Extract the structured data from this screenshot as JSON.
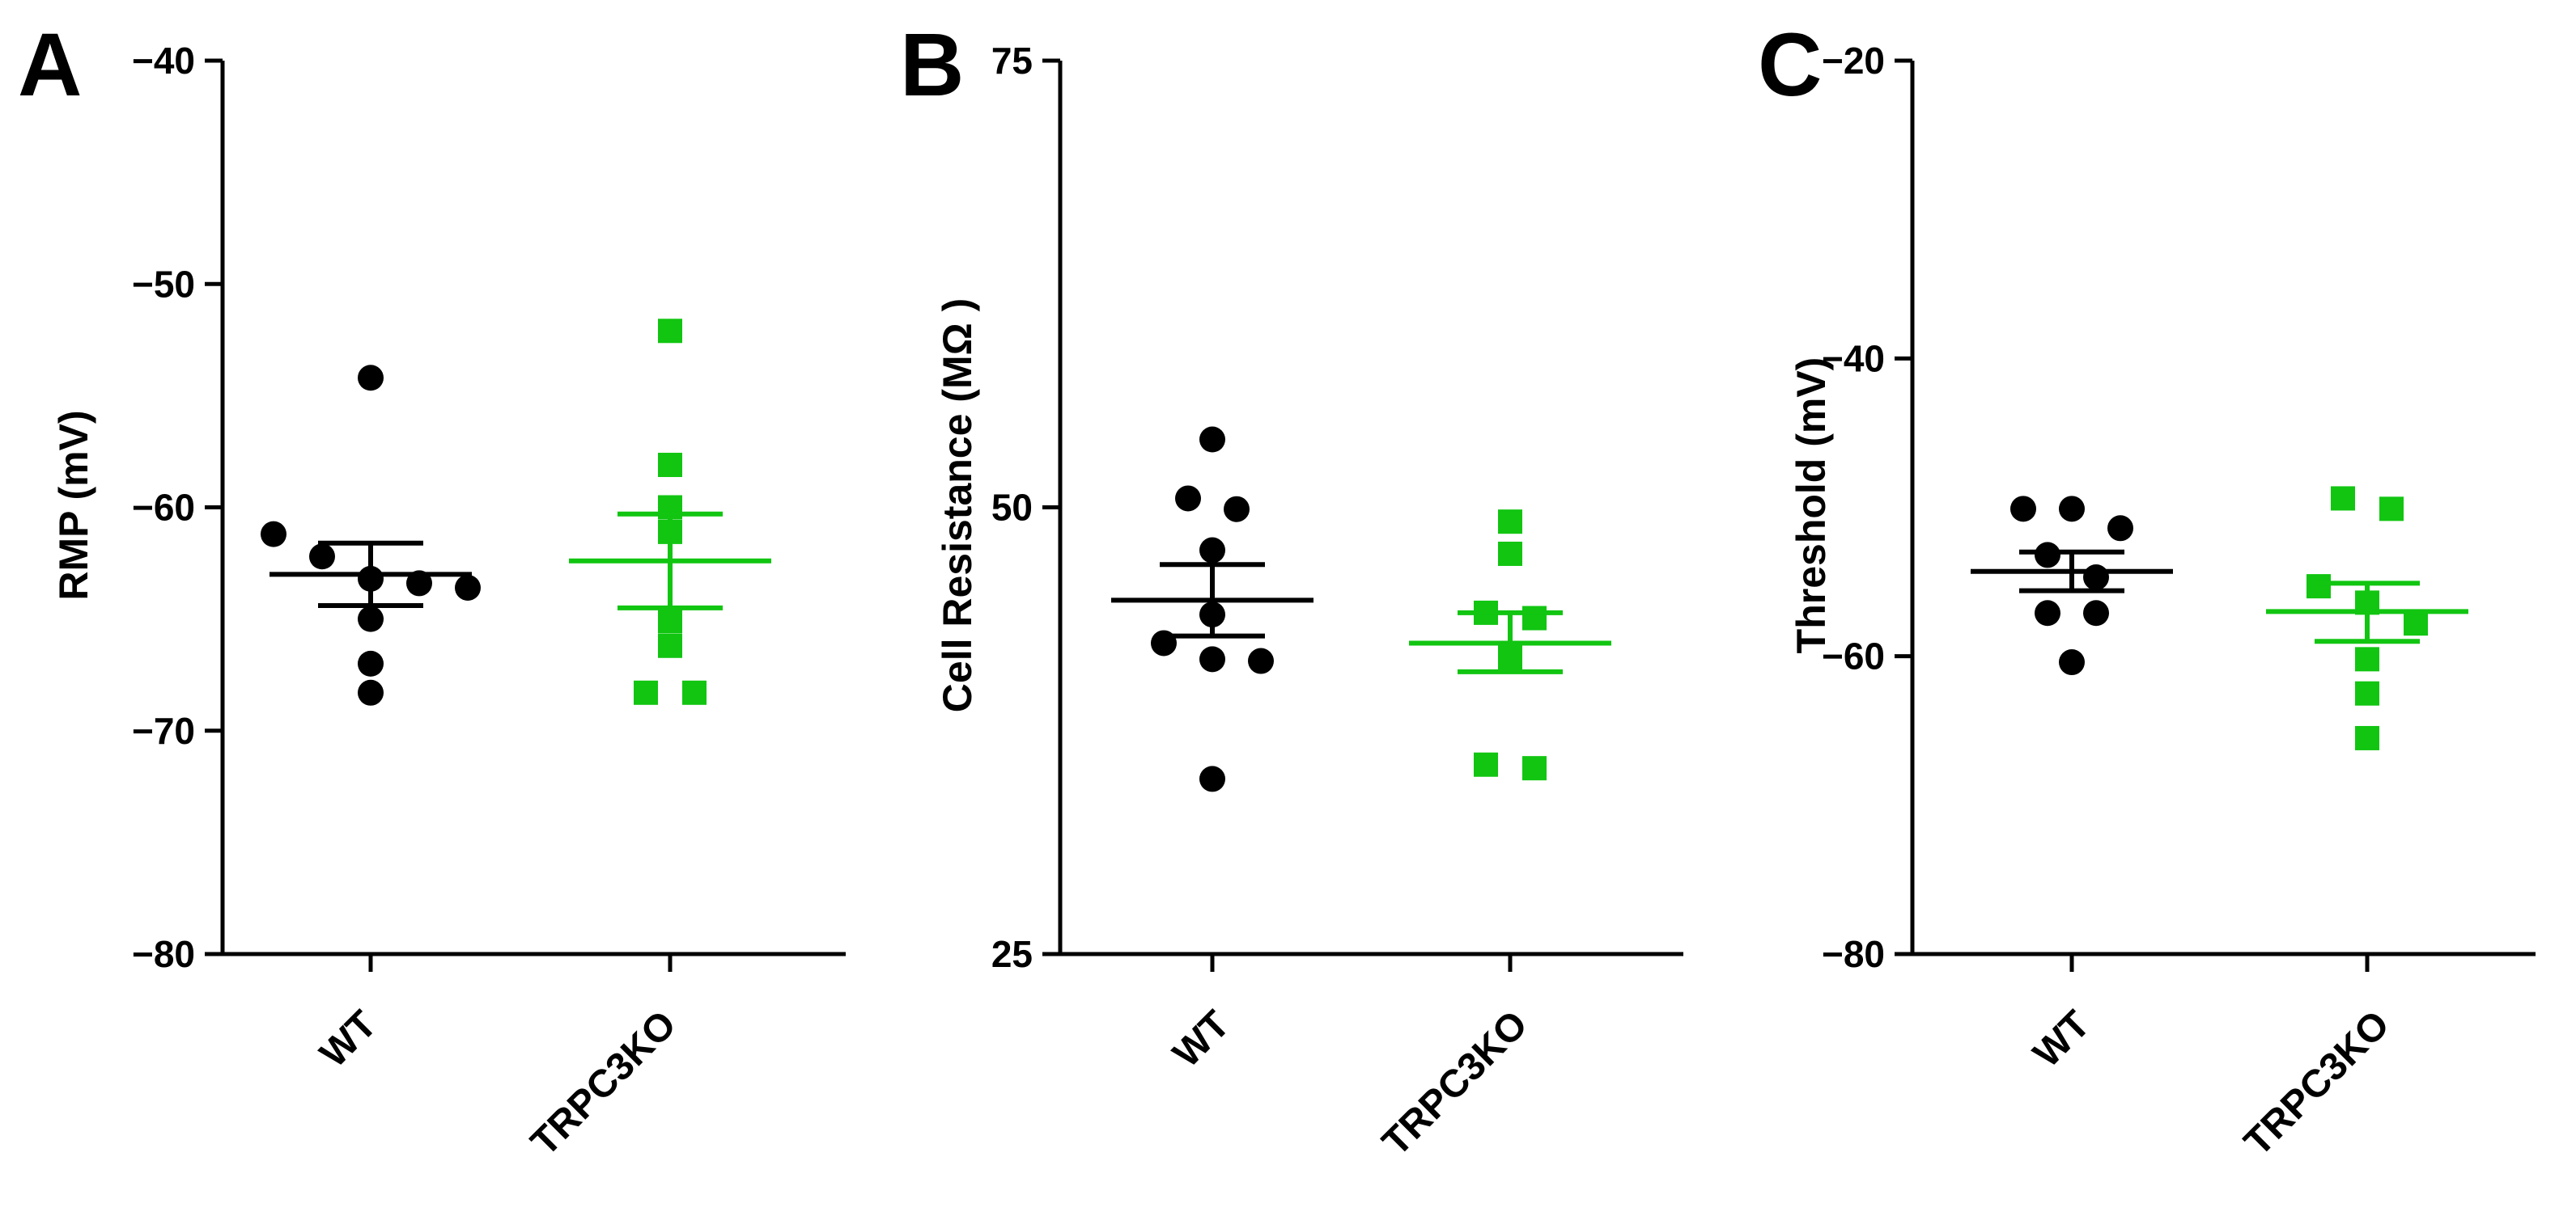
{
  "colors": {
    "wt": "#000000",
    "ko": "#11c511",
    "axis": "#000000"
  },
  "chart_data": [
    {
      "type": "scatter",
      "panel": "A",
      "ylabel": "RMP (mV)",
      "ylim": [
        -80,
        -40
      ],
      "yticks": [
        -40,
        -50,
        -60,
        -70,
        -80
      ],
      "ytick_labels": [
        "−40",
        "−50",
        "−60",
        "−70",
        "−80"
      ],
      "categories": [
        "WT",
        "TRPC3KO"
      ],
      "series": [
        {
          "name": "WT",
          "marker": "circle",
          "values": [
            -54.2,
            -61.2,
            -62.2,
            -63.2,
            -63.4,
            -63.6,
            -65.0,
            -67.0,
            -68.3
          ],
          "mean": -63.0,
          "sem_low": -64.4,
          "sem_high": -61.6
        },
        {
          "name": "TRPC3KO",
          "marker": "square",
          "values": [
            -52.1,
            -58.1,
            -60.0,
            -61.1,
            -65.1,
            -66.2,
            -68.3,
            -68.3
          ],
          "mean": -62.4,
          "sem_low": -64.5,
          "sem_high": -60.3
        }
      ]
    },
    {
      "type": "scatter",
      "panel": "B",
      "ylabel": "Cell Resistance (MΩ )",
      "ylim": [
        25,
        75
      ],
      "yticks": [
        25,
        50,
        75
      ],
      "ytick_labels": [
        "25",
        "50",
        "75"
      ],
      "categories": [
        "WT",
        "TRPC3KO"
      ],
      "series": [
        {
          "name": "WT",
          "marker": "circle",
          "values": [
            53.8,
            50.5,
            49.9,
            47.6,
            44.0,
            42.4,
            41.5,
            41.4,
            34.8
          ],
          "mean": 44.8,
          "sem_low": 42.8,
          "sem_high": 46.8
        },
        {
          "name": "TRPC3KO",
          "marker": "square",
          "values": [
            49.2,
            47.4,
            44.1,
            43.8,
            41.6,
            35.6,
            35.4
          ],
          "mean": 42.4,
          "sem_low": 40.8,
          "sem_high": 44.1
        }
      ]
    },
    {
      "type": "scatter",
      "panel": "C",
      "ylabel": "Threshold (mV)",
      "ylim": [
        -80,
        -20
      ],
      "yticks": [
        -20,
        -40,
        -60,
        -80
      ],
      "ytick_labels": [
        "−20",
        "−40",
        "−60",
        "−80"
      ],
      "categories": [
        "WT",
        "TRPC3KO"
      ],
      "series": [
        {
          "name": "WT",
          "marker": "circle",
          "values": [
            -50.1,
            -50.1,
            -51.4,
            -53.2,
            -54.7,
            -57.1,
            -57.1,
            -60.4
          ],
          "mean": -54.3,
          "sem_low": -55.6,
          "sem_high": -53.0
        },
        {
          "name": "TRPC3KO",
          "marker": "square",
          "values": [
            -49.4,
            -50.1,
            -55.3,
            -56.4,
            -57.8,
            -60.2,
            -62.5,
            -65.5
          ],
          "mean": -57.0,
          "sem_low": -59.0,
          "sem_high": -55.1
        }
      ]
    }
  ]
}
